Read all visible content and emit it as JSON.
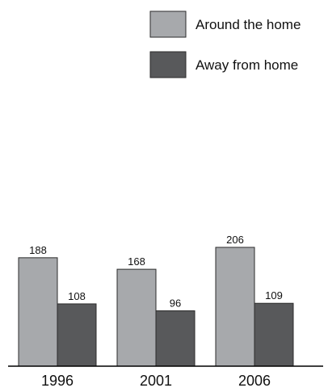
{
  "chart_data": {
    "type": "bar",
    "title": "",
    "xlabel": "",
    "ylabel": "",
    "categories": [
      "1996",
      "2001",
      "2006"
    ],
    "series": [
      {
        "name": "Around the home",
        "values": [
          188,
          168,
          206
        ],
        "color": "#a7a9ac"
      },
      {
        "name": "Away from home",
        "values": [
          108,
          96,
          109
        ],
        "color": "#58595b"
      }
    ],
    "ylim": [
      0,
      206
    ],
    "grid": false,
    "data_labels": [
      "188",
      "108",
      "168",
      "96",
      "206",
      "109"
    ],
    "legend": {
      "placement": "top-right"
    }
  }
}
